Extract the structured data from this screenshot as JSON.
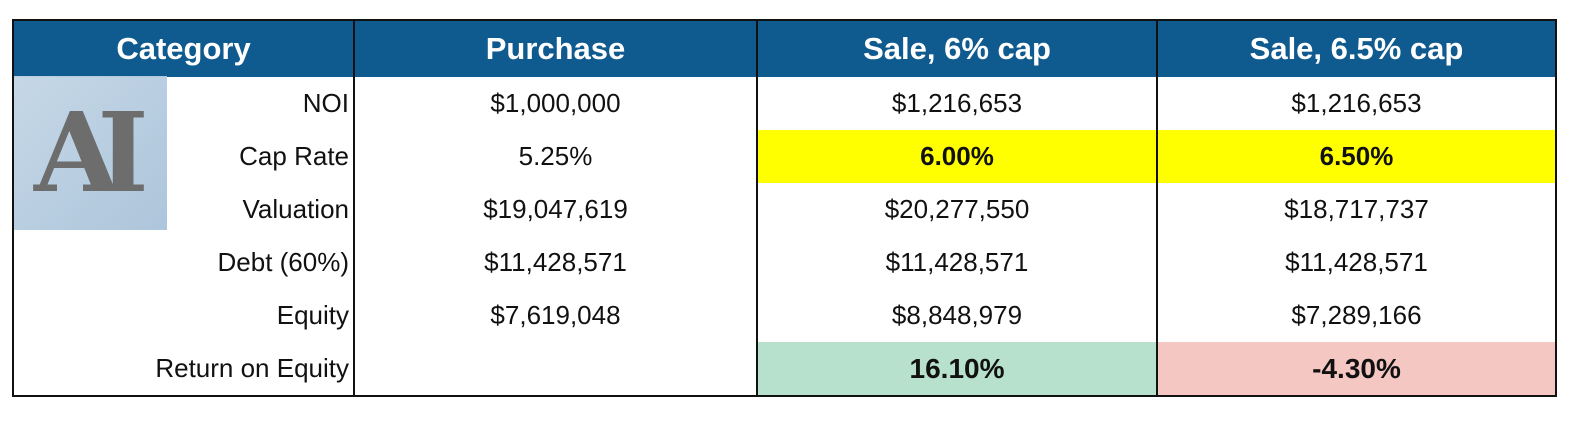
{
  "headers": [
    "Category",
    "Purchase",
    "Sale, 6% cap",
    "Sale, 6.5% cap"
  ],
  "rows": [
    {
      "label": "NOI",
      "purchase": "$1,000,000",
      "sale6": "$1,216,653",
      "sale65": "$1,216,653"
    },
    {
      "label": "Cap Rate",
      "purchase": "5.25%",
      "sale6": "6.00%",
      "sale65": "6.50%"
    },
    {
      "label": "Valuation",
      "purchase": "$19,047,619",
      "sale6": "$20,277,550",
      "sale65": "$18,717,737"
    },
    {
      "label": "Debt (60%)",
      "purchase": "$11,428,571",
      "sale6": "$11,428,571",
      "sale65": "$11,428,571"
    },
    {
      "label": "Equity",
      "purchase": "$7,619,048",
      "sale6": "$8,848,979",
      "sale65": "$7,289,166"
    },
    {
      "label": "Return on Equity",
      "purchase": "",
      "sale6": "16.10%",
      "sale65": "-4.30%"
    }
  ],
  "logo": {
    "text": "AI"
  },
  "colors": {
    "header": "#0f5a8e",
    "highlight": "#ffff00",
    "positive": "#b7e1cd",
    "negative": "#f4c7c3"
  }
}
